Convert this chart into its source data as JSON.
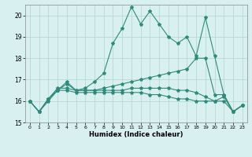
{
  "x": [
    0,
    1,
    2,
    3,
    4,
    5,
    6,
    7,
    8,
    9,
    10,
    11,
    12,
    13,
    14,
    15,
    16,
    17,
    18,
    19,
    20,
    21,
    22,
    23
  ],
  "line1": [
    16.0,
    15.5,
    16.0,
    16.5,
    16.8,
    16.5,
    16.6,
    16.9,
    17.3,
    18.7,
    19.4,
    20.4,
    19.6,
    20.2,
    19.6,
    19.0,
    18.7,
    19.0,
    18.1,
    19.9,
    18.1,
    16.3,
    15.5,
    15.8
  ],
  "line2": [
    16.0,
    15.5,
    16.1,
    16.5,
    16.9,
    16.5,
    16.5,
    16.5,
    16.6,
    16.7,
    16.8,
    16.9,
    17.0,
    17.1,
    17.2,
    17.3,
    17.4,
    17.5,
    18.0,
    18.0,
    16.3,
    16.3,
    15.5,
    15.8
  ],
  "line3": [
    16.0,
    15.5,
    16.1,
    16.6,
    16.6,
    16.5,
    16.5,
    16.5,
    16.5,
    16.5,
    16.5,
    16.6,
    16.6,
    16.6,
    16.6,
    16.6,
    16.5,
    16.5,
    16.4,
    16.2,
    16.0,
    16.2,
    15.5,
    15.8
  ],
  "line4": [
    16.0,
    15.5,
    16.1,
    16.5,
    16.5,
    16.4,
    16.4,
    16.4,
    16.4,
    16.4,
    16.4,
    16.4,
    16.4,
    16.3,
    16.3,
    16.2,
    16.1,
    16.1,
    16.0,
    16.0,
    16.0,
    16.0,
    15.5,
    15.8
  ],
  "color": "#2e8b7a",
  "bg_color": "#d8f0f0",
  "grid_color": "#b8d8d8",
  "xlabel": "Humidex (Indice chaleur)",
  "ylim": [
    15,
    20.5
  ],
  "xlim": [
    -0.5,
    23.5
  ],
  "yticks": [
    15,
    16,
    17,
    18,
    19,
    20
  ],
  "xticks": [
    0,
    1,
    2,
    3,
    4,
    5,
    6,
    7,
    8,
    9,
    10,
    11,
    12,
    13,
    14,
    15,
    16,
    17,
    18,
    19,
    20,
    21,
    22,
    23
  ]
}
